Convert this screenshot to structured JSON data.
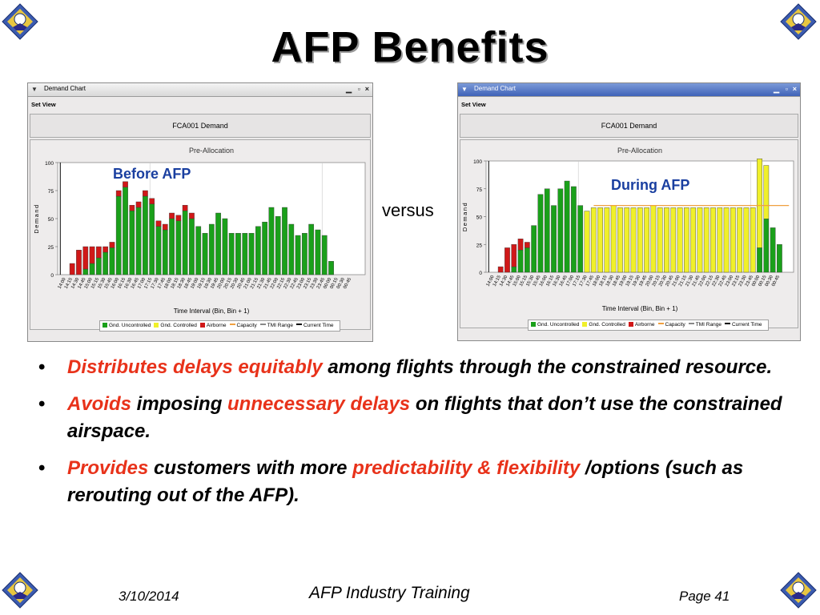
{
  "title": "AFP Benefits",
  "versus": "versus",
  "colors": {
    "uncontrolled": "#1aa01a",
    "controlled": "#f0f02a",
    "airborne": "#d01818",
    "capacity": "#f0a040",
    "annotation": "#1a3fa0",
    "emphasis": "#e8321a"
  },
  "window_before": {
    "titlebar": "Demand Chart",
    "menu": "Set View",
    "heading": "FCA001 Demand",
    "annotation": "Before AFP"
  },
  "window_during": {
    "titlebar": "Demand Chart",
    "menu": "Set View",
    "heading": "FCA001 Demand",
    "annotation": "During AFP"
  },
  "legend": [
    {
      "label": "Gnd. Uncontrolled",
      "icon": "square",
      "color": "#1aa01a"
    },
    {
      "label": "Gnd. Controlled",
      "icon": "square",
      "color": "#f0f02a"
    },
    {
      "label": "Airborne",
      "icon": "square",
      "color": "#d01818"
    },
    {
      "label": "Capacity",
      "icon": "line",
      "color": "#f0a040"
    },
    {
      "label": "TMI Range",
      "icon": "line",
      "color": "#888888"
    },
    {
      "label": "Current Time",
      "icon": "line",
      "color": "#000000"
    }
  ],
  "chart_data": [
    {
      "type": "bar",
      "title": "Pre-Allocation",
      "xlabel": "Time Interval (Bin, Bin + 1)",
      "ylabel": "Demand",
      "ylim": [
        0,
        100
      ],
      "yticks": [
        0,
        25,
        50,
        75,
        100
      ],
      "categories": [
        "14:00",
        "14:15",
        "14:30",
        "14:45",
        "15:00",
        "15:15",
        "15:30",
        "15:45",
        "16:00",
        "16:15",
        "16:30",
        "16:45",
        "17:00",
        "17:15",
        "17:30",
        "17:45",
        "18:00",
        "18:15",
        "18:30",
        "18:45",
        "19:00",
        "19:15",
        "19:30",
        "19:45",
        "20:00",
        "20:15",
        "20:30",
        "20:45",
        "21:00",
        "21:15",
        "21:30",
        "21:45",
        "22:00",
        "22:15",
        "22:30",
        "22:45",
        "23:00",
        "23:15",
        "23:30",
        "23:45",
        "00:00",
        "00:15",
        "00:30",
        "00:45"
      ],
      "series": [
        {
          "name": "Gnd. Uncontrolled",
          "values": [
            0,
            0,
            0,
            5,
            10,
            15,
            20,
            24,
            70,
            78,
            57,
            60,
            70,
            63,
            43,
            40,
            50,
            48,
            57,
            50,
            43,
            37,
            45,
            55,
            50,
            37,
            37,
            37,
            37,
            43,
            47,
            60,
            52,
            60,
            45,
            35,
            37,
            45,
            40,
            35,
            12,
            0,
            0,
            0
          ]
        },
        {
          "name": "Gnd. Controlled",
          "values": [
            0,
            0,
            0,
            0,
            0,
            0,
            0,
            0,
            0,
            0,
            0,
            0,
            0,
            0,
            0,
            0,
            0,
            0,
            0,
            0,
            0,
            0,
            0,
            0,
            0,
            0,
            0,
            0,
            0,
            0,
            0,
            0,
            0,
            0,
            0,
            0,
            0,
            0,
            0,
            0,
            0,
            0,
            0,
            0
          ]
        },
        {
          "name": "Airborne",
          "values": [
            0,
            10,
            22,
            20,
            15,
            10,
            5,
            5,
            5,
            5,
            5,
            5,
            5,
            5,
            5,
            5,
            5,
            5,
            5,
            5,
            0,
            0,
            0,
            0,
            0,
            0,
            0,
            0,
            0,
            0,
            0,
            0,
            0,
            0,
            0,
            0,
            0,
            0,
            0,
            0,
            0,
            0,
            0,
            0
          ]
        }
      ]
    },
    {
      "type": "bar",
      "title": "Pre-Allocation",
      "xlabel": "Time Interval (Bin, Bin + 1)",
      "ylabel": "Demand",
      "ylim": [
        0,
        100
      ],
      "yticks": [
        0,
        25,
        50,
        75,
        100
      ],
      "categories": [
        "14:00",
        "14:15",
        "14:30",
        "14:45",
        "15:00",
        "15:15",
        "15:30",
        "15:45",
        "16:00",
        "16:15",
        "16:30",
        "16:45",
        "17:00",
        "17:15",
        "17:30",
        "17:45",
        "18:00",
        "18:15",
        "18:30",
        "18:45",
        "19:00",
        "19:15",
        "19:30",
        "19:45",
        "20:00",
        "20:15",
        "20:30",
        "20:45",
        "21:00",
        "21:15",
        "21:30",
        "21:45",
        "22:00",
        "22:15",
        "22:30",
        "22:45",
        "23:00",
        "23:15",
        "23:30",
        "23:45",
        "00:00",
        "00:15",
        "00:30",
        "00:45"
      ],
      "series": [
        {
          "name": "Gnd. Uncontrolled",
          "values": [
            0,
            0,
            0,
            5,
            20,
            22,
            42,
            70,
            75,
            60,
            75,
            82,
            77,
            60,
            0,
            0,
            0,
            0,
            0,
            0,
            0,
            0,
            0,
            0,
            0,
            0,
            0,
            0,
            0,
            0,
            0,
            0,
            0,
            0,
            0,
            0,
            0,
            0,
            0,
            0,
            22,
            48,
            40,
            25
          ]
        },
        {
          "name": "Gnd. Controlled",
          "values": [
            0,
            0,
            0,
            0,
            0,
            0,
            0,
            0,
            0,
            0,
            0,
            0,
            0,
            0,
            55,
            58,
            58,
            58,
            60,
            58,
            58,
            58,
            58,
            58,
            60,
            58,
            58,
            58,
            58,
            58,
            58,
            58,
            58,
            58,
            58,
            58,
            58,
            58,
            58,
            58,
            80,
            48,
            0,
            0
          ]
        },
        {
          "name": "Airborne",
          "values": [
            0,
            5,
            22,
            20,
            10,
            5,
            0,
            0,
            0,
            0,
            0,
            0,
            0,
            0,
            0,
            0,
            0,
            0,
            0,
            0,
            0,
            0,
            0,
            0,
            0,
            0,
            0,
            0,
            0,
            0,
            0,
            0,
            0,
            0,
            0,
            0,
            0,
            0,
            0,
            0,
            0,
            0,
            0,
            0
          ]
        }
      ],
      "capacity": 60
    }
  ],
  "bullets": [
    {
      "segments": [
        {
          "text": "Distributes delays equitably",
          "red": true
        },
        {
          "text": " among flights through the constrained resource.",
          "red": false
        }
      ]
    },
    {
      "segments": [
        {
          "text": "Avoids",
          "red": true
        },
        {
          "text": " imposing ",
          "red": false
        },
        {
          "text": "unnecessary delays",
          "red": true
        },
        {
          "text": " on flights that don’t use the constrained airspace.",
          "red": false
        }
      ]
    },
    {
      "segments": [
        {
          "text": "Provides",
          "red": true
        },
        {
          "text": " customers with more ",
          "red": false
        },
        {
          "text": "predictability & flexibility",
          "red": true
        },
        {
          "text": " /options (such as rerouting out of the AFP).",
          "red": false
        }
      ]
    }
  ],
  "footer": {
    "date": "3/10/2014",
    "center": "AFP Industry Training",
    "page": "Page 41"
  }
}
